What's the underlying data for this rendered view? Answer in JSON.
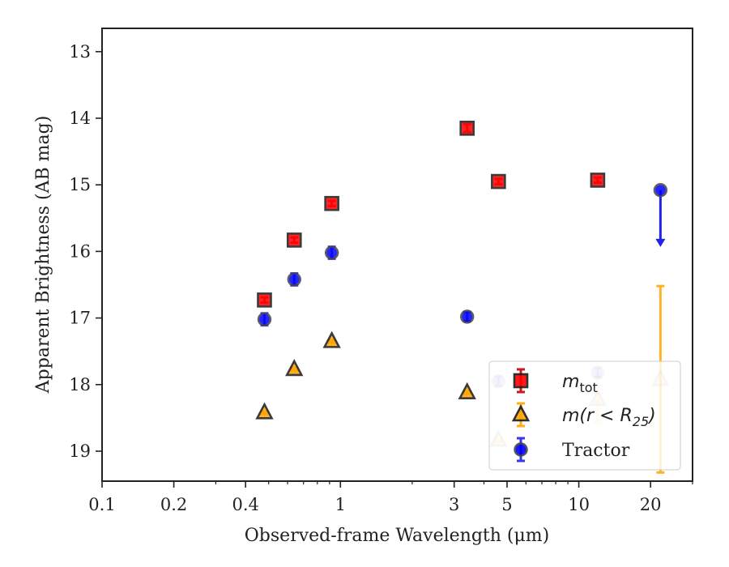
{
  "chart_data": {
    "type": "scatter",
    "title": "",
    "xlabel": "Observed-frame Wavelength (μm)",
    "ylabel": "Apparent Brightness (AB mag)",
    "xscale": "log",
    "xlim": [
      0.1,
      30
    ],
    "ylim": [
      19.45,
      12.65
    ],
    "y_inverted": true,
    "x_ticks": [
      0.1,
      0.2,
      0.4,
      1,
      3,
      5,
      10,
      20
    ],
    "x_tick_labels": [
      "0.1",
      "0.2",
      "0.4",
      "1",
      "3",
      "5",
      "10",
      "20"
    ],
    "y_ticks": [
      13,
      14,
      15,
      16,
      17,
      18,
      19
    ],
    "y_tick_labels": [
      "13",
      "14",
      "15",
      "16",
      "17",
      "18",
      "19"
    ],
    "grid": false,
    "legend_position": "bottom-right",
    "series": [
      {
        "name": "m_tot",
        "legend_main": "m",
        "legend_sub": "tot",
        "marker": "square",
        "color": "#ff0000",
        "edge_color": "#1a1a1a",
        "error_color": "#cc0000",
        "points": [
          {
            "x": 0.48,
            "y": 16.73,
            "err": 0.04
          },
          {
            "x": 0.64,
            "y": 15.83,
            "err": 0.04
          },
          {
            "x": 0.92,
            "y": 15.28,
            "err": 0.04
          },
          {
            "x": 3.4,
            "y": 14.15,
            "err": 0.06
          },
          {
            "x": 4.6,
            "y": 14.95,
            "err": 0.04
          },
          {
            "x": 12.0,
            "y": 14.93,
            "err": 0.04
          }
        ]
      },
      {
        "name": "m(r < R25)",
        "legend_main": "m(r < R",
        "legend_sub": "25",
        "legend_close": ")",
        "marker": "triangle",
        "color": "#ffa500",
        "edge_color": "#1a1a1a",
        "error_color": "#ffa500",
        "points": [
          {
            "x": 0.48,
            "y": 18.42,
            "err": 0.02
          },
          {
            "x": 0.64,
            "y": 17.77,
            "err": 0.02
          },
          {
            "x": 0.92,
            "y": 17.35,
            "err": 0.02
          },
          {
            "x": 3.4,
            "y": 18.12,
            "err": 0.02
          },
          {
            "x": 4.6,
            "y": 18.83,
            "err": 0.02,
            "faded": true
          },
          {
            "x": 12.0,
            "y": 18.22,
            "err": 0.35,
            "faded": true
          },
          {
            "x": 22.0,
            "y": 17.92,
            "err_low": 1.4,
            "err_high": 1.4,
            "faded": true
          }
        ]
      },
      {
        "name": "Tractor",
        "marker": "circle",
        "color": "#0000ff",
        "edge_color": "#444444",
        "error_color": "#2222ee",
        "points": [
          {
            "x": 0.48,
            "y": 17.02,
            "err": 0.09
          },
          {
            "x": 0.64,
            "y": 16.42,
            "err": 0.09
          },
          {
            "x": 0.92,
            "y": 16.02,
            "err": 0.09
          },
          {
            "x": 3.4,
            "y": 16.98,
            "err": 0.07
          },
          {
            "x": 4.6,
            "y": 17.95,
            "err": 0.07,
            "faded": true
          },
          {
            "x": 12.0,
            "y": 17.82,
            "err": 0.07,
            "faded": true
          },
          {
            "x": 22.0,
            "y": 15.08,
            "upper_limit": true,
            "limit_to": 15.92
          }
        ]
      }
    ]
  }
}
